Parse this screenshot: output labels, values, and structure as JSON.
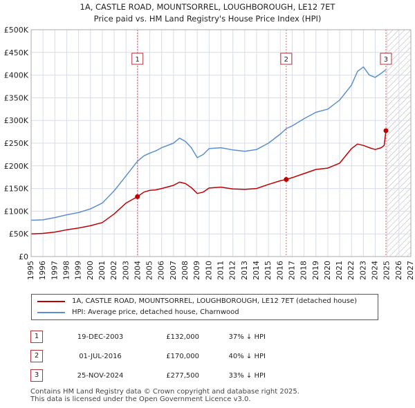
{
  "title_line1": "1A, CASTLE ROAD, MOUNTSORREL, LOUGHBOROUGH, LE12 7ET",
  "title_line2": "Price paid vs. HM Land Registry's House Price Index (HPI)",
  "colors": {
    "price_paid": "#c00000",
    "hpi": "#5b8ed0",
    "marker_border": "#b8303a",
    "grid": "#d7dce5",
    "plot_bg": "#ffffff"
  },
  "chart_data": {
    "type": "line",
    "xlim": [
      1995,
      2027
    ],
    "ylim": [
      0,
      500000
    ],
    "y_ticks": [
      0,
      50000,
      100000,
      150000,
      200000,
      250000,
      300000,
      350000,
      400000,
      450000,
      500000
    ],
    "y_tick_labels": [
      "£0",
      "£50K",
      "£100K",
      "£150K",
      "£200K",
      "£250K",
      "£300K",
      "£350K",
      "£400K",
      "£450K",
      "£500K"
    ],
    "x_ticks": [
      1995,
      1996,
      1997,
      1998,
      1999,
      2000,
      2001,
      2002,
      2003,
      2004,
      2005,
      2006,
      2007,
      2008,
      2009,
      2010,
      2011,
      2012,
      2013,
      2014,
      2015,
      2016,
      2017,
      2018,
      2019,
      2020,
      2021,
      2022,
      2023,
      2024,
      2025,
      2026,
      2027
    ],
    "projection_start": 2025.0,
    "series": [
      {
        "name": "1A, CASTLE ROAD, MOUNTSORREL, LOUGHBOROUGH, LE12 7ET (detached house)",
        "color": "#c00000",
        "points": [
          [
            1995.0,
            50000
          ],
          [
            1996.0,
            51000
          ],
          [
            1997.0,
            54000
          ],
          [
            1998.0,
            59000
          ],
          [
            1999.0,
            63000
          ],
          [
            2000.0,
            68000
          ],
          [
            2001.0,
            75000
          ],
          [
            2002.0,
            94000
          ],
          [
            2003.0,
            118000
          ],
          [
            2003.96,
            132000
          ],
          [
            2004.5,
            142000
          ],
          [
            2005.0,
            146000
          ],
          [
            2005.5,
            147000
          ],
          [
            2006.0,
            150000
          ],
          [
            2007.0,
            157000
          ],
          [
            2007.5,
            164000
          ],
          [
            2008.0,
            161000
          ],
          [
            2008.5,
            152000
          ],
          [
            2009.0,
            139000
          ],
          [
            2009.5,
            142000
          ],
          [
            2010.0,
            151000
          ],
          [
            2011.0,
            153000
          ],
          [
            2012.0,
            149000
          ],
          [
            2013.0,
            148000
          ],
          [
            2014.0,
            150000
          ],
          [
            2015.0,
            159000
          ],
          [
            2016.0,
            167000
          ],
          [
            2016.5,
            170000
          ],
          [
            2017.0,
            174000
          ],
          [
            2018.0,
            183000
          ],
          [
            2019.0,
            192000
          ],
          [
            2020.0,
            195000
          ],
          [
            2021.0,
            206000
          ],
          [
            2022.0,
            238000
          ],
          [
            2022.5,
            248000
          ],
          [
            2023.0,
            245000
          ],
          [
            2023.5,
            240000
          ],
          [
            2024.0,
            236000
          ],
          [
            2024.5,
            240000
          ],
          [
            2024.75,
            245000
          ],
          [
            2024.9,
            277500
          ]
        ]
      },
      {
        "name": "HPI: Average price, detached house, Charnwood",
        "color": "#5b8ed0",
        "points": [
          [
            1995.0,
            80000
          ],
          [
            1996.0,
            81000
          ],
          [
            1997.0,
            86000
          ],
          [
            1998.0,
            92000
          ],
          [
            1999.0,
            97000
          ],
          [
            2000.0,
            105000
          ],
          [
            2001.0,
            118000
          ],
          [
            2002.0,
            145000
          ],
          [
            2003.0,
            178000
          ],
          [
            2003.96,
            210000
          ],
          [
            2004.5,
            222000
          ],
          [
            2005.0,
            228000
          ],
          [
            2005.5,
            233000
          ],
          [
            2006.0,
            240000
          ],
          [
            2007.0,
            250000
          ],
          [
            2007.5,
            261000
          ],
          [
            2008.0,
            254000
          ],
          [
            2008.5,
            240000
          ],
          [
            2009.0,
            218000
          ],
          [
            2009.5,
            225000
          ],
          [
            2010.0,
            238000
          ],
          [
            2011.0,
            240000
          ],
          [
            2012.0,
            235000
          ],
          [
            2013.0,
            232000
          ],
          [
            2014.0,
            236000
          ],
          [
            2015.0,
            250000
          ],
          [
            2016.0,
            270000
          ],
          [
            2016.5,
            282000
          ],
          [
            2017.0,
            288000
          ],
          [
            2018.0,
            304000
          ],
          [
            2019.0,
            318000
          ],
          [
            2020.0,
            325000
          ],
          [
            2021.0,
            345000
          ],
          [
            2022.0,
            378000
          ],
          [
            2022.5,
            408000
          ],
          [
            2023.0,
            418000
          ],
          [
            2023.5,
            400000
          ],
          [
            2024.0,
            395000
          ],
          [
            2024.5,
            404000
          ],
          [
            2024.9,
            412000
          ]
        ]
      }
    ],
    "sales": [
      {
        "id": "1",
        "x": 2003.96,
        "value": 132000
      },
      {
        "id": "2",
        "x": 2016.5,
        "value": 170000
      },
      {
        "id": "3",
        "x": 2024.9,
        "value": 277500
      }
    ]
  },
  "legend": {
    "price_label": "1A, CASTLE ROAD, MOUNTSORREL, LOUGHBOROUGH, LE12 7ET (detached house)",
    "hpi_label": "HPI: Average price, detached house, Charnwood"
  },
  "sales_table": [
    {
      "num": "1",
      "date": "19-DEC-2003",
      "price": "£132,000",
      "hpi": "37% ↓ HPI"
    },
    {
      "num": "2",
      "date": "01-JUL-2016",
      "price": "£170,000",
      "hpi": "40% ↓ HPI"
    },
    {
      "num": "3",
      "date": "25-NOV-2024",
      "price": "£277,500",
      "hpi": "33% ↓ HPI"
    }
  ],
  "footer": {
    "line1": "Contains HM Land Registry data © Crown copyright and database right 2025.",
    "line2": "This data is licensed under the Open Government Licence v3.0."
  }
}
